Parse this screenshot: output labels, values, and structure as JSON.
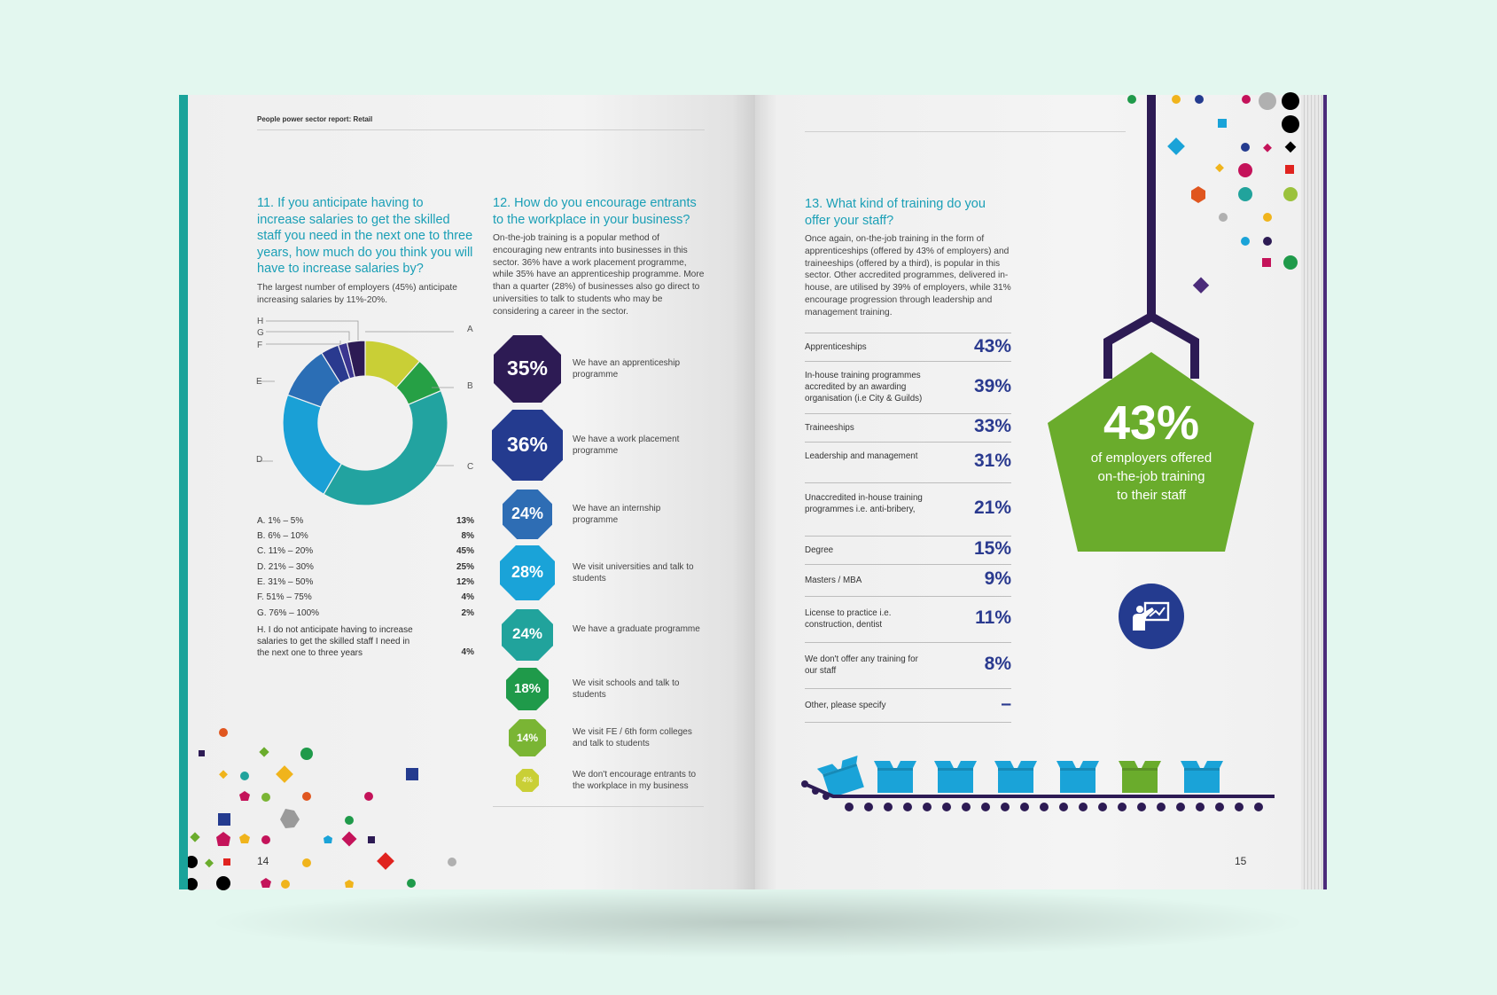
{
  "header": {
    "report_title": "People power sector report: Retail"
  },
  "q11": {
    "title": "11. If you anticipate having to increase salaries to get the skilled staff you need in the next one to three years, how much do you think you will have to increase salaries by?",
    "intro": "The largest number of employers (45%) anticipate increasing salaries by 11%-20%.",
    "pie_labels": [
      "A",
      "B",
      "C",
      "D",
      "E",
      "F",
      "G",
      "H"
    ],
    "legend": [
      {
        "label": "A. 1% – 5%",
        "value": "13%"
      },
      {
        "label": "B. 6% – 10%",
        "value": "8%"
      },
      {
        "label": "C. 11% – 20%",
        "value": "45%"
      },
      {
        "label": "D. 21% – 30%",
        "value": "25%"
      },
      {
        "label": "E. 31% – 50%",
        "value": "12%"
      },
      {
        "label": "F. 51% – 75%",
        "value": "4%"
      },
      {
        "label": "G. 76% – 100%",
        "value": "2%"
      },
      {
        "label": "H. I do not anticipate having to increase salaries to get the skilled staff I need in the next one to three years",
        "value": "4%"
      }
    ],
    "donut_colors": [
      "#c9cf36",
      "#26a045",
      "#22a3a0",
      "#1aa0d6",
      "#2b6eb5",
      "#2a3a8f",
      "#3b3590",
      "#2d1b54"
    ],
    "donut_values": [
      13,
      8,
      45,
      25,
      12,
      4,
      2,
      4
    ]
  },
  "q12": {
    "title": "12. How do you encourage entrants to the workplace in your business?",
    "intro": "On-the-job training is a popular method of encouraging new entrants into businesses in this sector. 36% have a work placement programme, while 35% have an apprenticeship programme. More than a quarter (28%) of businesses also go direct to universities to talk to students who may be considering a career in the sector.",
    "items": [
      {
        "value": "35%",
        "label": "We have an apprenticeship programme",
        "color": "#2d1b54"
      },
      {
        "value": "36%",
        "label": "We have a work placement programme",
        "color": "#243b8f"
      },
      {
        "value": "24%",
        "label": "We have an internship programme",
        "color": "#2e6db4"
      },
      {
        "value": "28%",
        "label": "We visit universities and talk to students",
        "color": "#1aa3d8"
      },
      {
        "value": "24%",
        "label": "We have a graduate programme",
        "color": "#21a39c"
      },
      {
        "value": "18%",
        "label": "We visit schools and talk to students",
        "color": "#1f9a4a"
      },
      {
        "value": "14%",
        "label": "We visit FE / 6th form colleges and talk to students",
        "color": "#7ab534"
      },
      {
        "value": "4%",
        "label": "We don't encourage entrants to the workplace in my business",
        "color": "#c9cf36"
      }
    ]
  },
  "q13": {
    "title": "13. What kind of training do you offer your staff?",
    "intro": "Once again, on-the-job training in the form of apprenticeships (offered by 43% of employers) and traineeships (offered by a third), is popular in this sector.  Other accredited programmes, delivered in-house, are utilised by 39% of employers, while 31% encourage progression through leadership and management training.",
    "rows": [
      {
        "label": "Apprenticeships",
        "value": "43%"
      },
      {
        "label": "In-house training programmes accredited by an awarding organisation (i.e City & Guilds)",
        "value": "39%"
      },
      {
        "label": "Traineeships",
        "value": "33%"
      },
      {
        "label": "Leadership and management",
        "value": "31%"
      },
      {
        "label": "Unaccredited in-house training programmes i.e. anti-bribery,",
        "value": "21%"
      },
      {
        "label": "Degree",
        "value": "15%"
      },
      {
        "label": "Masters / MBA",
        "value": "9%"
      },
      {
        "label": "License to practice i.e. construction, dentist",
        "value": "11%"
      },
      {
        "label": "We don't offer any training for our staff",
        "value": "8%"
      },
      {
        "label": "Other, please specify",
        "value": "–"
      }
    ]
  },
  "callout": {
    "value": "43%",
    "line1": "of employers offered",
    "line2": "on-the-job training",
    "line3": "to their staff",
    "color": "#6aac2c"
  },
  "icons": {
    "teacher": "teacher-board-icon"
  },
  "page_numbers": {
    "left": "14",
    "right": "15"
  }
}
